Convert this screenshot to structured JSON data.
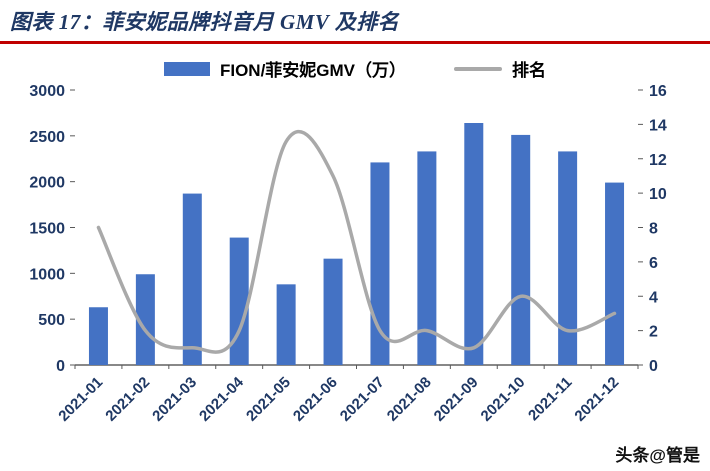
{
  "header": {
    "title": "图表 17：菲安妮品牌抖音月 GMV 及排名"
  },
  "legend": {
    "bar_label": "FION/菲安妮GMV（万）",
    "line_label": "排名"
  },
  "watermark": "头条@管是",
  "colors": {
    "accent_rule": "#c00000",
    "title_text": "#1f3864",
    "axis_text": "#1f3864",
    "bar": "#4472c4",
    "line": "#a9a9a9"
  },
  "chart_data": {
    "type": "combo_bar_line",
    "title": "菲安妮品牌抖音月GMV及排名",
    "categories": [
      "2021-01",
      "2021-02",
      "2021-03",
      "2021-04",
      "2021-05",
      "2021-06",
      "2021-07",
      "2021-08",
      "2021-09",
      "2021-10",
      "2021-11",
      "2021-12"
    ],
    "series": [
      {
        "name": "FION/菲安妮GMV（万）",
        "type": "bar",
        "axis": "left",
        "color": "#4472c4",
        "values": [
          630,
          990,
          1870,
          1390,
          880,
          1160,
          2210,
          2330,
          2640,
          2510,
          2330,
          1990
        ]
      },
      {
        "name": "排名",
        "type": "line",
        "axis": "right",
        "color": "#a9a9a9",
        "values": [
          8,
          2,
          1,
          2,
          13,
          11,
          2,
          2,
          1,
          4,
          2,
          3
        ]
      }
    ],
    "left_axis": {
      "min": 0,
      "max": 3000,
      "step": 500
    },
    "right_axis": {
      "min": 0,
      "max": 16,
      "step": 2
    },
    "grid": false,
    "legend_position": "top",
    "x_label_rotation": -45
  }
}
